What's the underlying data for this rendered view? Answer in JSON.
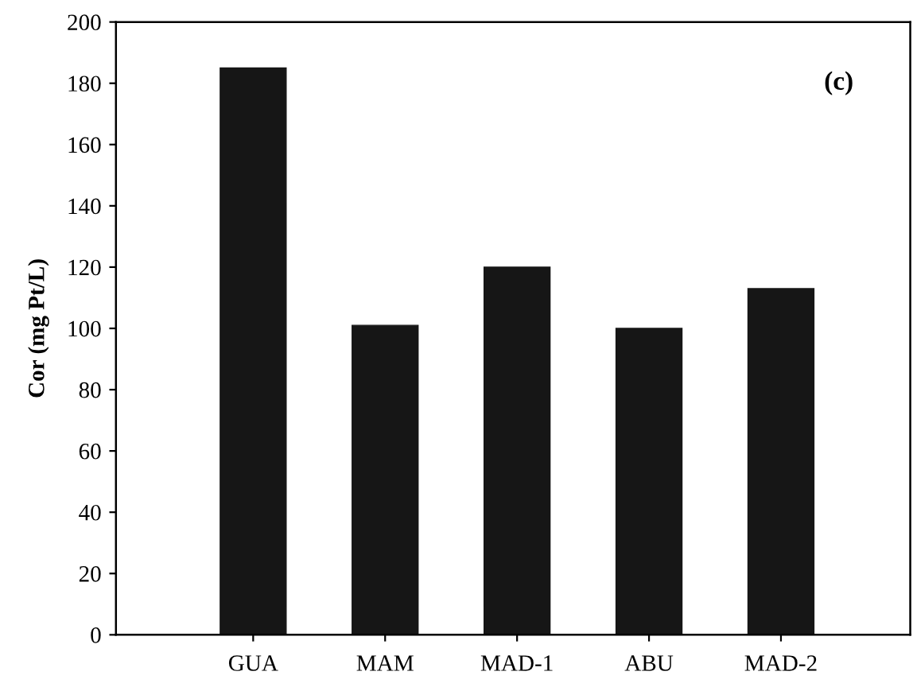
{
  "chart_data": {
    "type": "bar",
    "ylabel": "Cor (mg Pt/L)",
    "annotations": [
      "(c)"
    ],
    "categories": [
      "GUA",
      "MAM",
      "MAD-1",
      "ABU",
      "MAD-2"
    ],
    "values": [
      185,
      101,
      120,
      100,
      113
    ],
    "color": "#161616",
    "ylim": [
      0,
      200
    ],
    "yticks": [
      0,
      20,
      40,
      60,
      80,
      100,
      120,
      140,
      160,
      180,
      200
    ],
    "grid": false,
    "legend": false
  }
}
